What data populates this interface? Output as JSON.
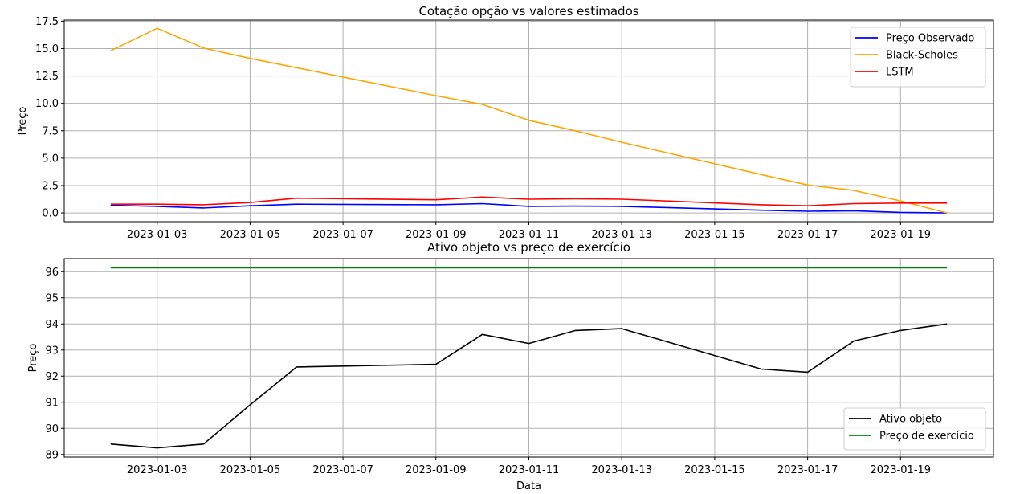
{
  "chart_data": [
    {
      "type": "line",
      "title": "Cotação opção vs valores estimados",
      "xlabel": "",
      "ylabel": "Preço",
      "x": [
        "2023-01-02",
        "2023-01-03",
        "2023-01-04",
        "2023-01-05",
        "2023-01-06",
        "2023-01-09",
        "2023-01-10",
        "2023-01-11",
        "2023-01-12",
        "2023-01-13",
        "2023-01-16",
        "2023-01-17",
        "2023-01-18",
        "2023-01-19",
        "2023-01-20"
      ],
      "xlim": [
        "2023-01-01",
        "2023-01-21"
      ],
      "xticks": [
        "2023-01-03",
        "2023-01-05",
        "2023-01-07",
        "2023-01-09",
        "2023-01-11",
        "2023-01-13",
        "2023-01-15",
        "2023-01-17",
        "2023-01-19"
      ],
      "ylim": [
        -0.8,
        17.6
      ],
      "yticks": [
        0.0,
        2.5,
        5.0,
        7.5,
        10.0,
        12.5,
        15.0,
        17.5
      ],
      "ytick_labels": [
        "0.0",
        "2.5",
        "5.0",
        "7.5",
        "10.0",
        "12.5",
        "15.0",
        "17.5"
      ],
      "grid": true,
      "legend_position": "top-right",
      "series": [
        {
          "name": "Preço Observado",
          "color": "#0000ff",
          "values": [
            0.7,
            0.6,
            0.45,
            0.65,
            0.8,
            0.75,
            0.85,
            0.6,
            0.62,
            0.6,
            0.25,
            0.15,
            0.2,
            0.05,
            0.0
          ]
        },
        {
          "name": "Black-Scholes",
          "color": "#ffa500",
          "values": [
            14.8,
            16.85,
            15.05,
            14.1,
            13.25,
            10.7,
            9.9,
            8.45,
            7.5,
            6.45,
            3.5,
            2.55,
            2.05,
            1.1,
            0.0
          ]
        },
        {
          "name": "LSTM",
          "color": "#ff0000",
          "values": [
            0.8,
            0.8,
            0.75,
            0.95,
            1.35,
            1.2,
            1.45,
            1.25,
            1.3,
            1.25,
            0.75,
            0.65,
            0.85,
            0.9,
            0.9
          ]
        }
      ]
    },
    {
      "type": "line",
      "title": "Ativo objeto vs preço de exercício",
      "xlabel": "Data",
      "ylabel": "Preço",
      "x": [
        "2023-01-02",
        "2023-01-03",
        "2023-01-04",
        "2023-01-05",
        "2023-01-06",
        "2023-01-09",
        "2023-01-10",
        "2023-01-11",
        "2023-01-12",
        "2023-01-13",
        "2023-01-16",
        "2023-01-17",
        "2023-01-18",
        "2023-01-19",
        "2023-01-20"
      ],
      "xlim": [
        "2023-01-01",
        "2023-01-21"
      ],
      "xticks": [
        "2023-01-03",
        "2023-01-05",
        "2023-01-07",
        "2023-01-09",
        "2023-01-11",
        "2023-01-13",
        "2023-01-15",
        "2023-01-17",
        "2023-01-19"
      ],
      "ylim": [
        88.9,
        96.5
      ],
      "yticks": [
        89,
        90,
        91,
        92,
        93,
        94,
        95,
        96
      ],
      "ytick_labels": [
        "89",
        "90",
        "91",
        "92",
        "93",
        "94",
        "95",
        "96"
      ],
      "grid": true,
      "legend_position": "bottom-right",
      "series": [
        {
          "name": "Ativo objeto",
          "color": "#000000",
          "values": [
            89.4,
            89.25,
            89.4,
            90.9,
            92.35,
            92.45,
            93.6,
            93.25,
            93.75,
            93.82,
            92.27,
            92.15,
            93.35,
            93.75,
            94.0
          ]
        },
        {
          "name": "Preço de exercício",
          "color": "#008000",
          "values": [
            96.15,
            96.15,
            96.15,
            96.15,
            96.15,
            96.15,
            96.15,
            96.15,
            96.15,
            96.15,
            96.15,
            96.15,
            96.15,
            96.15,
            96.15
          ]
        }
      ]
    }
  ]
}
